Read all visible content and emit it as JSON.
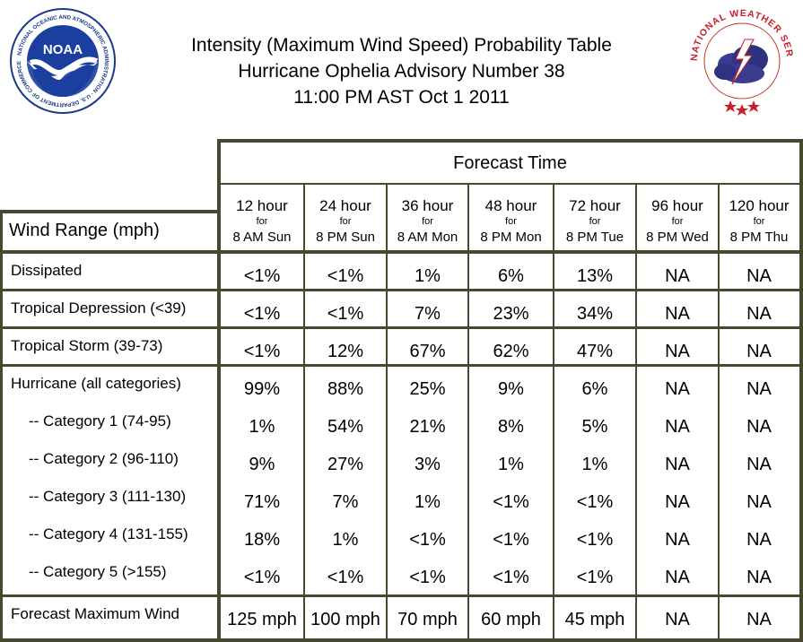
{
  "title": {
    "line1": "Intensity (Maximum Wind Speed) Probability Table",
    "line2": "Hurricane Ophelia Advisory Number 38",
    "line3": "11:00 PM AST Oct 1 2011"
  },
  "logos": {
    "noaa": {
      "text": "NOAA",
      "ring_text": "NATIONAL OCEANIC AND ATMOSPHERIC ADMINISTRATION · U.S. DEPARTMENT OF COMMERCE"
    },
    "nws": {
      "ring_text": "NATIONAL WEATHER SERVICE"
    }
  },
  "table": {
    "forecast_time_label": "Forecast Time",
    "wind_range_label": "Wind Range (mph)",
    "columns": [
      {
        "hours": "12 hour",
        "for": "for",
        "time": "8 AM Sun"
      },
      {
        "hours": "24 hour",
        "for": "for",
        "time": "8 PM Sun"
      },
      {
        "hours": "36 hour",
        "for": "for",
        "time": "8 AM Mon"
      },
      {
        "hours": "48 hour",
        "for": "for",
        "time": "8 PM Mon"
      },
      {
        "hours": "72 hour",
        "for": "for",
        "time": "8 PM Tue"
      },
      {
        "hours": "96 hour",
        "for": "for",
        "time": "8 PM Wed"
      },
      {
        "hours": "120 hour",
        "for": "for",
        "time": "8 PM Thu"
      }
    ],
    "rows": [
      {
        "label": "Dissipated",
        "values": [
          "<1%",
          "<1%",
          "1%",
          "6%",
          "13%",
          "NA",
          "NA"
        ]
      },
      {
        "label": "Tropical Depression (<39)",
        "values": [
          "<1%",
          "<1%",
          "7%",
          "23%",
          "34%",
          "NA",
          "NA"
        ]
      },
      {
        "label": "Tropical Storm (39-73)",
        "values": [
          "<1%",
          "12%",
          "67%",
          "62%",
          "47%",
          "NA",
          "NA"
        ]
      },
      {
        "label": "Hurricane (all categories)",
        "values": [
          "99%",
          "88%",
          "25%",
          "9%",
          "6%",
          "NA",
          "NA"
        ]
      },
      {
        "label": "-- Category 1 (74-95)",
        "values": [
          "1%",
          "54%",
          "21%",
          "8%",
          "5%",
          "NA",
          "NA"
        ]
      },
      {
        "label": "-- Category 2 (96-110)",
        "values": [
          "9%",
          "27%",
          "3%",
          "1%",
          "1%",
          "NA",
          "NA"
        ]
      },
      {
        "label": "-- Category 3 (111-130)",
        "values": [
          "71%",
          "7%",
          "1%",
          "<1%",
          "<1%",
          "NA",
          "NA"
        ]
      },
      {
        "label": "-- Category 4 (131-155)",
        "values": [
          "18%",
          "1%",
          "<1%",
          "<1%",
          "<1%",
          "NA",
          "NA"
        ]
      },
      {
        "label": "-- Category 5 (>155)",
        "values": [
          "<1%",
          "<1%",
          "<1%",
          "<1%",
          "<1%",
          "NA",
          "NA"
        ]
      },
      {
        "label": "Forecast Maximum Wind",
        "values": [
          "125 mph",
          "100 mph",
          "70 mph",
          "60 mph",
          "45 mph",
          "NA",
          "NA"
        ]
      }
    ]
  }
}
